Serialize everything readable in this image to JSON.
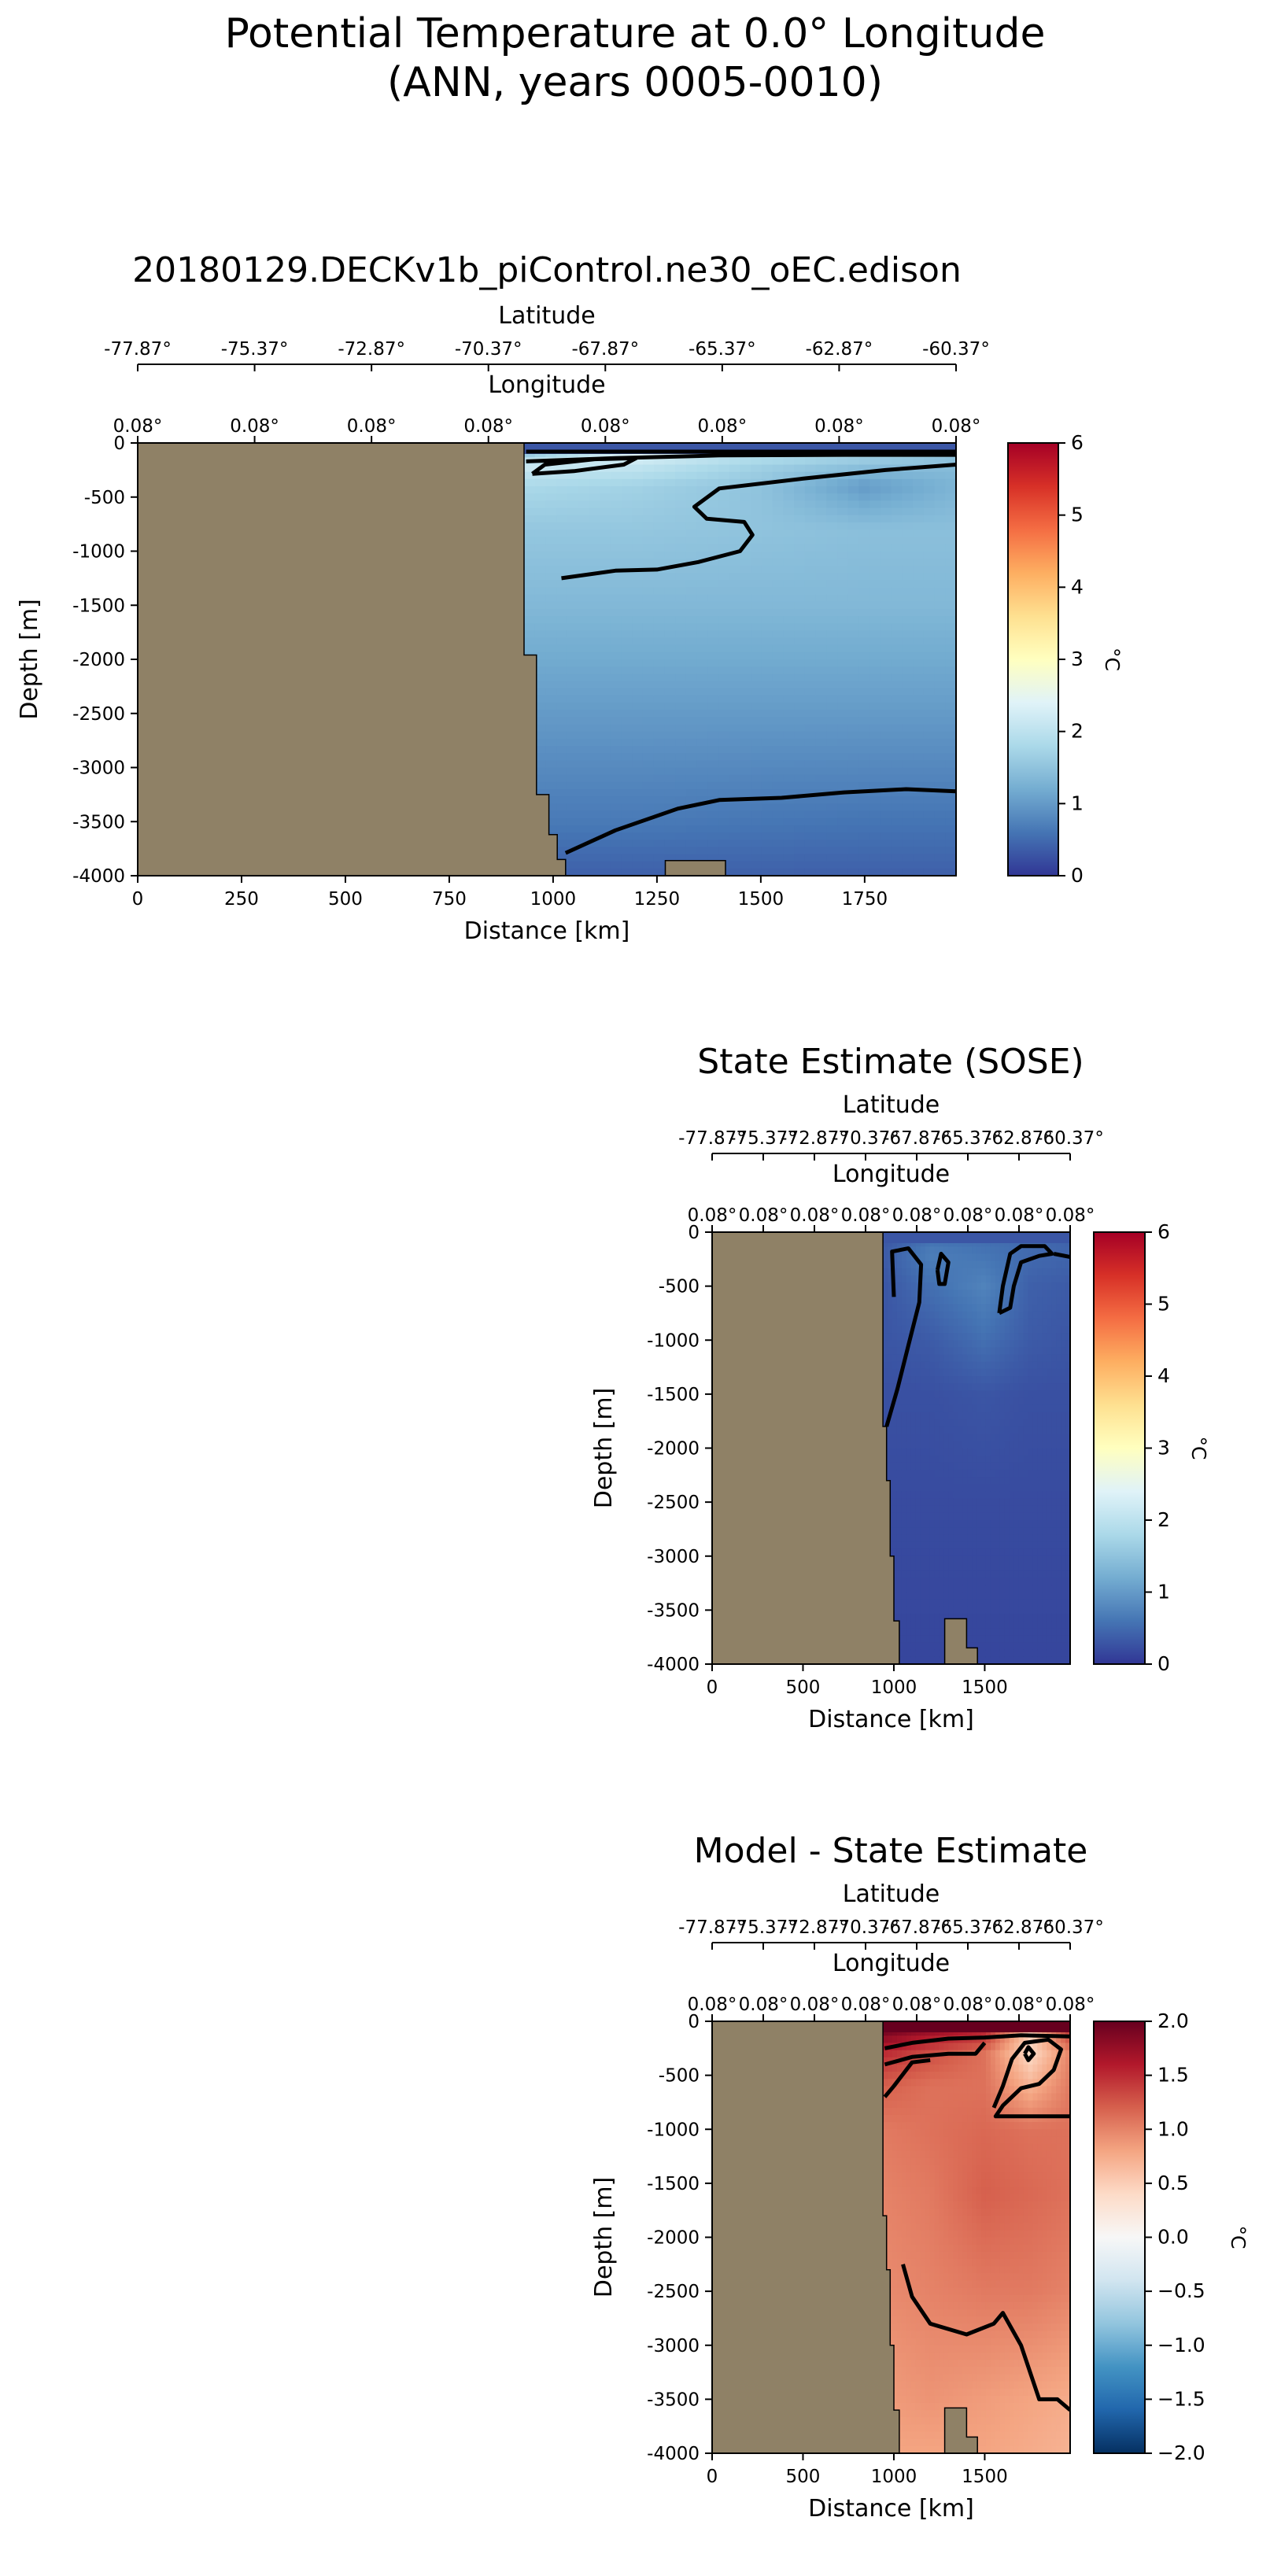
{
  "figure": {
    "title_line1": "Potential Temperature at 0.0° Longitude",
    "title_line2": "(ANN, years 0005-0010)"
  },
  "chart_data": [
    {
      "type": "heatmap",
      "title": "20180129.DECKv1b_piControl.ne30_oEC.edison",
      "xlabel": "Distance [km]",
      "ylabel": "Depth [m]",
      "top_axis1_label": "Latitude",
      "top_axis2_label": "Longitude",
      "xlim": [
        0,
        1970
      ],
      "ylim": [
        -4000,
        0
      ],
      "xticks": [
        0,
        250,
        500,
        750,
        1000,
        1250,
        1500,
        1750
      ],
      "yticks": [
        0,
        -500,
        -1000,
        -1500,
        -2000,
        -2500,
        -3000,
        -3500,
        -4000
      ],
      "lat_ticks": [
        "-77.87°",
        "-75.37°",
        "-72.87°",
        "-70.37°",
        "-67.87°",
        "-65.37°",
        "-62.87°",
        "-60.37°"
      ],
      "lon_ticks": [
        "0.08°",
        "0.08°",
        "0.08°",
        "0.08°",
        "0.08°",
        "0.08°",
        "0.08°",
        "0.08°"
      ],
      "colorbar": {
        "min": 0,
        "max": 6,
        "ticks": [
          0,
          1,
          2,
          3,
          4,
          5,
          6
        ],
        "label": "°C",
        "cmap": "RdYlBu_r"
      },
      "land_color": "#8f8166",
      "land_boundary": [
        [
          0,
          0
        ],
        [
          930,
          0
        ],
        [
          930,
          -1960
        ],
        [
          960,
          -1960
        ],
        [
          960,
          -3250
        ],
        [
          990,
          -3250
        ],
        [
          990,
          -3620
        ],
        [
          1010,
          -3620
        ],
        [
          1010,
          -3850
        ],
        [
          1030,
          -3850
        ],
        [
          1030,
          -4000
        ],
        [
          0,
          -4000
        ]
      ],
      "land_bumps": [
        [
          [
            1270,
            -4000
          ],
          [
            1270,
            -3860
          ],
          [
            1415,
            -3860
          ],
          [
            1415,
            -4000
          ]
        ]
      ],
      "surface_temp": 0.3,
      "field": {
        "x": [
          930,
          1200,
          1500,
          1750,
          1970
        ],
        "depth": [
          0,
          -100,
          -200,
          -400,
          -800,
          -1500,
          -2500,
          -3500,
          -4000
        ],
        "values": [
          [
            0.3,
            0.3,
            0.3,
            0.3,
            0.3
          ],
          [
            1.6,
            2.4,
            2.0,
            1.8,
            1.6
          ],
          [
            2.2,
            2.1,
            1.7,
            1.5,
            1.4
          ],
          [
            1.8,
            1.7,
            1.5,
            1.0,
            1.3
          ],
          [
            1.55,
            1.55,
            1.5,
            1.45,
            1.45
          ],
          [
            1.35,
            1.35,
            1.35,
            1.35,
            1.35
          ],
          [
            1.0,
            1.0,
            1.0,
            1.0,
            1.0
          ],
          [
            0.65,
            0.65,
            0.62,
            0.6,
            0.6
          ],
          [
            0.4,
            0.4,
            0.4,
            0.4,
            0.4
          ]
        ]
      },
      "contours": [
        [
          [
            935,
            -170
          ],
          [
            1150,
            -140
          ],
          [
            1400,
            -115
          ],
          [
            1700,
            -110
          ],
          [
            1970,
            -110
          ]
        ],
        [
          [
            935,
            -80
          ],
          [
            1970,
            -80
          ]
        ],
        [
          [
            950,
            -285
          ],
          [
            1050,
            -260
          ],
          [
            1170,
            -200
          ],
          [
            1200,
            -140
          ],
          [
            1100,
            -150
          ],
          [
            980,
            -200
          ],
          [
            950,
            -285
          ]
        ],
        [
          [
            1020,
            -1250
          ],
          [
            1150,
            -1180
          ],
          [
            1250,
            -1170
          ],
          [
            1350,
            -1100
          ],
          [
            1450,
            -1000
          ],
          [
            1480,
            -850
          ],
          [
            1460,
            -730
          ],
          [
            1370,
            -700
          ],
          [
            1340,
            -590
          ],
          [
            1400,
            -420
          ],
          [
            1600,
            -330
          ],
          [
            1800,
            -250
          ],
          [
            1970,
            -200
          ]
        ],
        [
          [
            1030,
            -3790
          ],
          [
            1150,
            -3580
          ],
          [
            1300,
            -3380
          ],
          [
            1400,
            -3300
          ],
          [
            1550,
            -3280
          ],
          [
            1700,
            -3230
          ],
          [
            1850,
            -3200
          ],
          [
            1970,
            -3220
          ]
        ]
      ]
    },
    {
      "type": "heatmap",
      "title": "State Estimate (SOSE)",
      "xlabel": "Distance [km]",
      "ylabel": "Depth [m]",
      "top_axis1_label": "Latitude",
      "top_axis2_label": "Longitude",
      "xlim": [
        0,
        1970
      ],
      "ylim": [
        -4000,
        0
      ],
      "xticks": [
        0,
        500,
        1000,
        1500
      ],
      "yticks": [
        0,
        -500,
        -1000,
        -1500,
        -2000,
        -2500,
        -3000,
        -3500,
        -4000
      ],
      "lat_ticks": [
        "-77.87°",
        "-75.37°",
        "-72.87°",
        "-70.37°",
        "-67.87°",
        "-65.37°",
        "-62.87°",
        "-60.37°"
      ],
      "lon_ticks": [
        "0.08°",
        "0.08°",
        "0.08°",
        "0.08°",
        "0.08°",
        "0.08°",
        "0.08°",
        "0.08°"
      ],
      "colorbar": {
        "min": 0,
        "max": 6,
        "ticks": [
          0,
          1,
          2,
          3,
          4,
          5,
          6
        ],
        "label": "°C",
        "cmap": "RdYlBu_r"
      },
      "land_color": "#8f8166",
      "land_boundary": [
        [
          0,
          0
        ],
        [
          940,
          0
        ],
        [
          940,
          -1800
        ],
        [
          960,
          -1800
        ],
        [
          960,
          -2300
        ],
        [
          980,
          -2300
        ],
        [
          980,
          -3000
        ],
        [
          1000,
          -3000
        ],
        [
          1000,
          -3600
        ],
        [
          1030,
          -3600
        ],
        [
          1030,
          -4000
        ],
        [
          0,
          -4000
        ]
      ],
      "land_bumps": [
        [
          [
            1280,
            -4000
          ],
          [
            1280,
            -3580
          ],
          [
            1400,
            -3580
          ],
          [
            1400,
            -3850
          ],
          [
            1460,
            -3850
          ],
          [
            1460,
            -4000
          ]
        ]
      ],
      "surface_temp": 0.3,
      "field": {
        "x": [
          940,
          1200,
          1500,
          1750,
          1970
        ],
        "depth": [
          0,
          -200,
          -500,
          -1000,
          -1500,
          -2500,
          -4000
        ],
        "values": [
          [
            0.3,
            0.5,
            0.5,
            0.5,
            0.4
          ],
          [
            0.35,
            0.7,
            0.6,
            0.5,
            0.45
          ],
          [
            0.3,
            0.55,
            0.75,
            0.4,
            0.35
          ],
          [
            0.3,
            0.35,
            0.55,
            0.35,
            0.3
          ],
          [
            0.25,
            0.25,
            0.3,
            0.25,
            0.25
          ],
          [
            0.2,
            0.2,
            0.2,
            0.2,
            0.2
          ],
          [
            0.15,
            0.15,
            0.15,
            0.15,
            0.15
          ]
        ]
      },
      "contours": [
        [
          [
            960,
            -1800
          ],
          [
            1020,
            -1450
          ],
          [
            1080,
            -1050
          ],
          [
            1140,
            -650
          ],
          [
            1150,
            -300
          ],
          [
            1080,
            -150
          ],
          [
            990,
            -180
          ],
          [
            1000,
            -600
          ]
        ],
        [
          [
            1240,
            -350
          ],
          [
            1260,
            -200
          ],
          [
            1300,
            -280
          ],
          [
            1280,
            -480
          ],
          [
            1250,
            -480
          ],
          [
            1240,
            -350
          ]
        ],
        [
          [
            1580,
            -750
          ],
          [
            1600,
            -500
          ],
          [
            1640,
            -200
          ],
          [
            1700,
            -130
          ],
          [
            1830,
            -130
          ],
          [
            1870,
            -200
          ],
          [
            1800,
            -220
          ],
          [
            1700,
            -280
          ],
          [
            1660,
            -500
          ],
          [
            1640,
            -700
          ],
          [
            1580,
            -750
          ]
        ],
        [
          [
            1880,
            -200
          ],
          [
            1970,
            -230
          ]
        ]
      ]
    },
    {
      "type": "heatmap",
      "title": "Model - State Estimate",
      "xlabel": "Distance [km]",
      "ylabel": "Depth [m]",
      "top_axis1_label": "Latitude",
      "top_axis2_label": "Longitude",
      "xlim": [
        0,
        1970
      ],
      "ylim": [
        -4000,
        0
      ],
      "xticks": [
        0,
        500,
        1000,
        1500
      ],
      "yticks": [
        0,
        -500,
        -1000,
        -1500,
        -2000,
        -2500,
        -3000,
        -3500,
        -4000
      ],
      "lat_ticks": [
        "-77.87°",
        "-75.37°",
        "-72.87°",
        "-70.37°",
        "-67.87°",
        "-65.37°",
        "-62.87°",
        "-60.37°"
      ],
      "lon_ticks": [
        "0.08°",
        "0.08°",
        "0.08°",
        "0.08°",
        "0.08°",
        "0.08°",
        "0.08°",
        "0.08°"
      ],
      "colorbar": {
        "min": -2,
        "max": 2,
        "ticks": [
          2.0,
          1.5,
          1.0,
          0.5,
          0.0,
          -0.5,
          -1.0,
          -1.5,
          -2.0
        ],
        "label": "°C",
        "cmap": "RdBu_r"
      },
      "land_color": "#8f8166",
      "land_boundary": [
        [
          0,
          0
        ],
        [
          940,
          0
        ],
        [
          940,
          -1800
        ],
        [
          960,
          -1800
        ],
        [
          960,
          -2300
        ],
        [
          980,
          -2300
        ],
        [
          980,
          -3000
        ],
        [
          1000,
          -3000
        ],
        [
          1000,
          -3600
        ],
        [
          1030,
          -3600
        ],
        [
          1030,
          -4000
        ],
        [
          0,
          -4000
        ]
      ],
      "land_bumps": [
        [
          [
            1280,
            -4000
          ],
          [
            1280,
            -3580
          ],
          [
            1400,
            -3580
          ],
          [
            1400,
            -3850
          ],
          [
            1460,
            -3850
          ],
          [
            1460,
            -4000
          ]
        ]
      ],
      "surface_temp": 2.0,
      "field": {
        "x": [
          940,
          1200,
          1500,
          1750,
          1970
        ],
        "depth": [
          0,
          -100,
          -300,
          -600,
          -1000,
          -1600,
          -2500,
          -3500,
          -4000
        ],
        "values": [
          [
            2.0,
            2.0,
            2.0,
            2.0,
            2.0
          ],
          [
            1.9,
            1.7,
            1.5,
            0.5,
            1.4
          ],
          [
            1.5,
            1.3,
            1.1,
            0.4,
            1.0
          ],
          [
            1.2,
            1.1,
            1.1,
            0.7,
            1.05
          ],
          [
            1.05,
            1.1,
            1.15,
            1.1,
            1.1
          ],
          [
            1.0,
            1.05,
            1.2,
            1.15,
            1.1
          ],
          [
            0.95,
            1.0,
            1.05,
            1.05,
            1.0
          ],
          [
            0.85,
            0.9,
            0.85,
            0.8,
            0.75
          ],
          [
            0.8,
            0.8,
            0.8,
            0.75,
            0.7
          ]
        ]
      },
      "contours": [
        [
          [
            950,
            -250
          ],
          [
            1100,
            -200
          ],
          [
            1300,
            -160
          ],
          [
            1500,
            -150
          ],
          [
            1700,
            -130
          ],
          [
            1970,
            -140
          ]
        ],
        [
          [
            950,
            -400
          ],
          [
            1100,
            -330
          ],
          [
            1300,
            -300
          ],
          [
            1450,
            -300
          ],
          [
            1500,
            -200
          ]
        ],
        [
          [
            950,
            -700
          ],
          [
            1000,
            -600
          ],
          [
            1100,
            -380
          ],
          [
            1200,
            -360
          ]
        ],
        [
          [
            1550,
            -800
          ],
          [
            1600,
            -600
          ],
          [
            1650,
            -350
          ],
          [
            1720,
            -200
          ],
          [
            1850,
            -170
          ],
          [
            1920,
            -260
          ],
          [
            1880,
            -450
          ],
          [
            1800,
            -580
          ],
          [
            1700,
            -620
          ],
          [
            1600,
            -780
          ],
          [
            1560,
            -880
          ],
          [
            1700,
            -880
          ],
          [
            1970,
            -880
          ]
        ],
        [
          [
            1720,
            -300
          ],
          [
            1740,
            -240
          ],
          [
            1770,
            -300
          ],
          [
            1740,
            -360
          ],
          [
            1720,
            -300
          ]
        ],
        [
          [
            1050,
            -2250
          ],
          [
            1100,
            -2550
          ],
          [
            1200,
            -2800
          ],
          [
            1400,
            -2900
          ],
          [
            1550,
            -2800
          ],
          [
            1600,
            -2700
          ],
          [
            1700,
            -3000
          ],
          [
            1800,
            -3500
          ],
          [
            1900,
            -3500
          ],
          [
            1970,
            -3600
          ]
        ]
      ]
    }
  ]
}
